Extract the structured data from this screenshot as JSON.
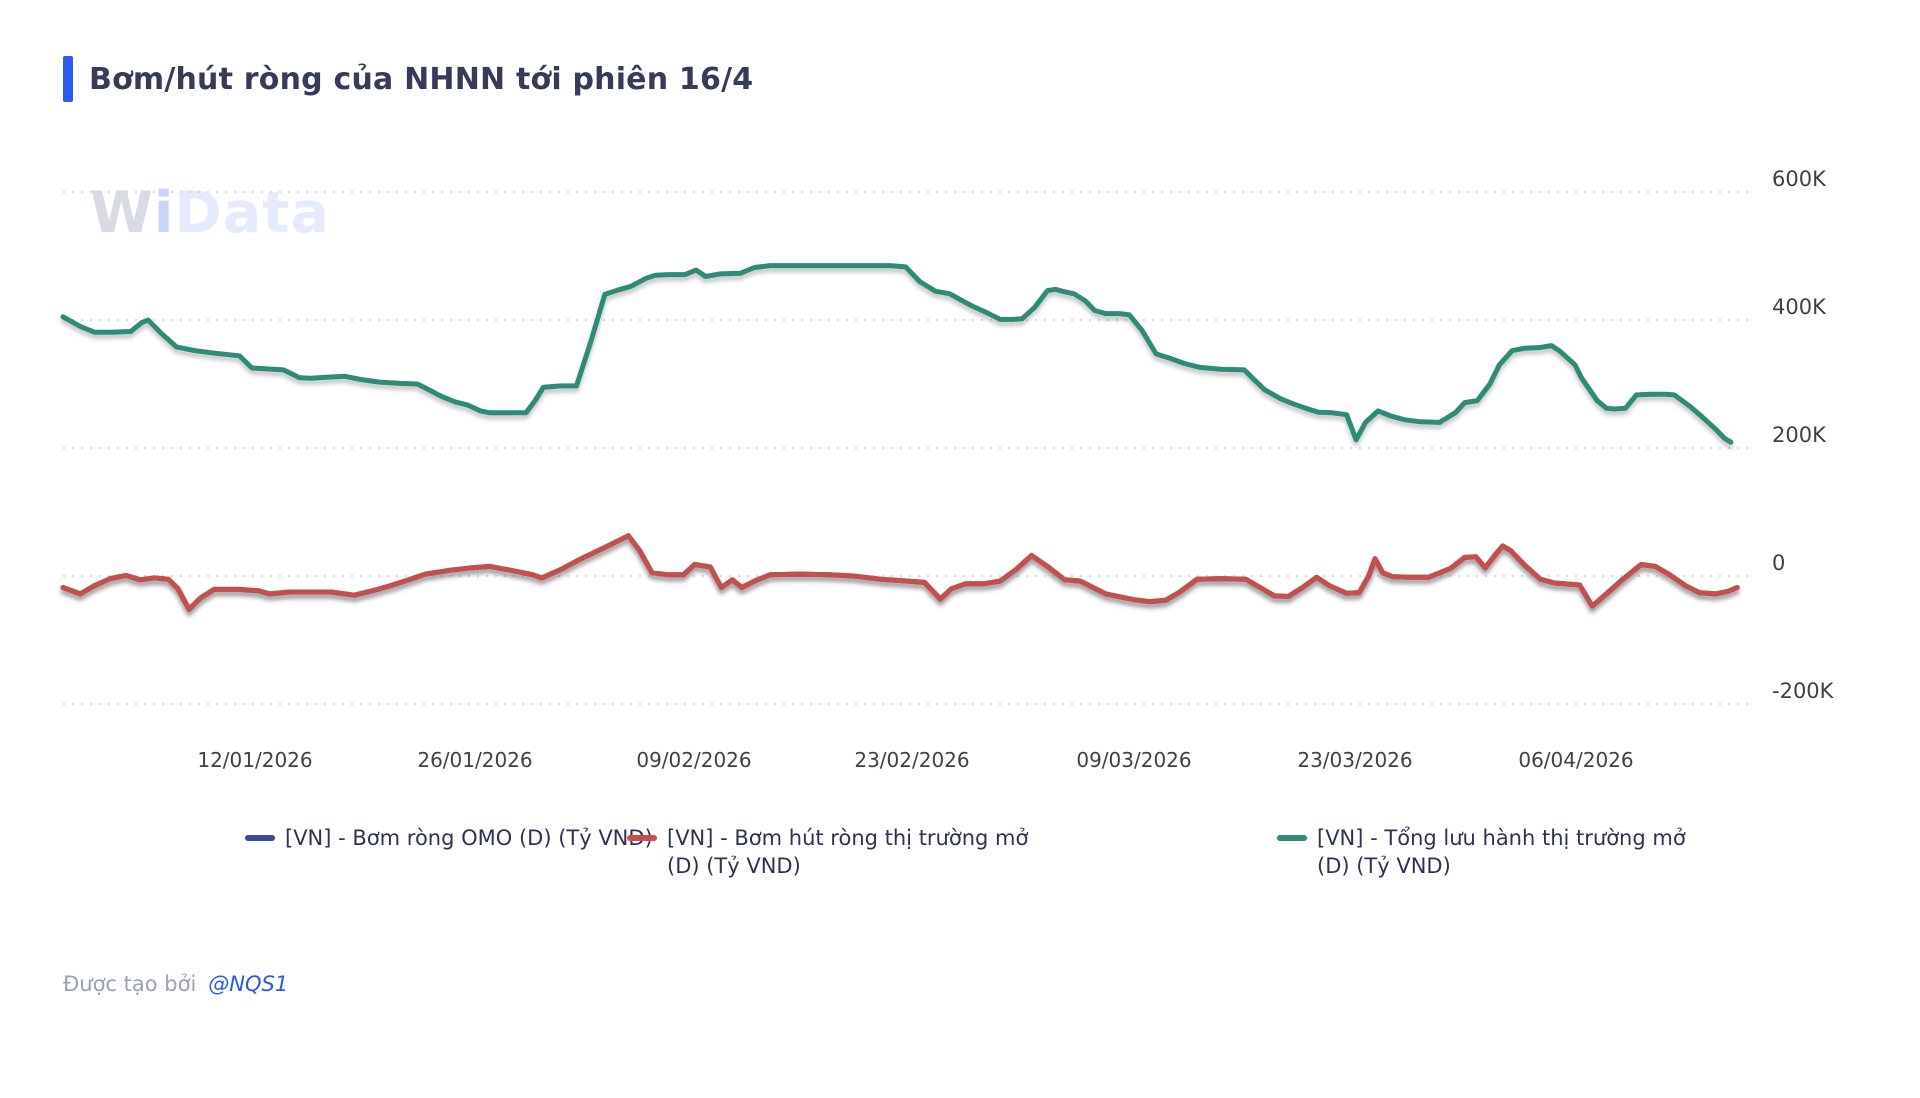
{
  "title": {
    "text": "Bơm/hút ròng của NHNN tới phiên 16/4",
    "accent_color": "#2a5cf0"
  },
  "watermark": {
    "part1": "W",
    "part2": "i",
    "part3": "Data"
  },
  "y_axis": {
    "labels": [
      "600K",
      "400K",
      "200K",
      "0",
      "-200K"
    ]
  },
  "x_axis": {
    "labels": [
      "12/01/2026",
      "26/01/2026",
      "09/02/2026",
      "23/02/2026",
      "09/03/2026",
      "23/03/2026",
      "06/04/2026"
    ]
  },
  "legend": {
    "items": [
      {
        "color": "#3e4a9a",
        "lines": [
          "[VN] - Bơm ròng OMO (D) (Tỷ VND)"
        ]
      },
      {
        "color": "#c5504d",
        "lines": [
          "[VN] - Bơm hút ròng thị trường mở",
          "(D) (Tỷ VND)"
        ]
      },
      {
        "color": "#2e8b76",
        "lines": [
          "[VN] - Tổng lưu hành thị trường mở",
          "(D) (Tỷ VND)"
        ]
      }
    ]
  },
  "footer": {
    "created_by": "Được tạo bởi",
    "author": "@NQS1"
  },
  "chart_data": {
    "type": "line",
    "title": "Bơm/hút ròng của NHNN tới phiên 16/4",
    "value_unit": "Tỷ VND",
    "values_scale": "K (nghìn tỷ VND, đọc theo trục phải)",
    "ylim_K": [
      -200,
      600
    ],
    "grid": "horizontal dotted",
    "legend_position": "bottom",
    "x_axis": {
      "tick_labels": [
        "12/01/2026",
        "26/01/2026",
        "09/02/2026",
        "23/02/2026",
        "09/03/2026",
        "23/03/2026",
        "06/04/2026"
      ],
      "tick_t_days": [
        12.2,
        26.2,
        40.2,
        54.2,
        68.2,
        82.2,
        96.2
      ],
      "t_range": [
        0,
        106.3
      ],
      "t_unit": "days (t=12.2 tương ứng 12/01/2026, dữ liệu kết thúc phiên 16/4/2026)"
    },
    "series": [
      {
        "name": "[VN] - Bơm ròng OMO (D) (Tỷ VND)",
        "color": "#3e4a9a",
        "points_ref": 1,
        "note": "Đường này trùng và bị che hoàn toàn bởi đường đỏ trong ảnh"
      },
      {
        "name": "[VN] - Bơm hút ròng thị trường mở (D) (Tỷ VND)",
        "color": "#c5504d",
        "points": [
          [
            0,
            -18
          ],
          [
            1.1,
            -28
          ],
          [
            2,
            -15
          ],
          [
            3,
            -4
          ],
          [
            4,
            1
          ],
          [
            4.9,
            -6
          ],
          [
            5.8,
            -3
          ],
          [
            6.7,
            -5
          ],
          [
            7.3,
            -20
          ],
          [
            8,
            -52
          ],
          [
            8.7,
            -35
          ],
          [
            9.6,
            -21
          ],
          [
            11.2,
            -21
          ],
          [
            12.4,
            -23
          ],
          [
            13.1,
            -28
          ],
          [
            14.4,
            -25
          ],
          [
            15.7,
            -25
          ],
          [
            17,
            -25
          ],
          [
            18.5,
            -30
          ],
          [
            19.8,
            -22
          ],
          [
            20.8,
            -15
          ],
          [
            21.7,
            -8
          ],
          [
            23,
            3
          ],
          [
            24.6,
            9
          ],
          [
            26,
            13
          ],
          [
            27.1,
            15
          ],
          [
            28.4,
            9
          ],
          [
            29.8,
            2
          ],
          [
            30.4,
            -3
          ],
          [
            31.6,
            10
          ],
          [
            32.9,
            27
          ],
          [
            34.6,
            47
          ],
          [
            35.9,
            63
          ],
          [
            36.6,
            40
          ],
          [
            37.4,
            5
          ],
          [
            38.4,
            2
          ],
          [
            39.4,
            2
          ],
          [
            40.1,
            18
          ],
          [
            41.1,
            14
          ],
          [
            41.8,
            -18
          ],
          [
            42.5,
            -6
          ],
          [
            43.1,
            -18
          ],
          [
            43.9,
            -8
          ],
          [
            44.9,
            2
          ],
          [
            46.8,
            3
          ],
          [
            48.7,
            2
          ],
          [
            50.2,
            0
          ],
          [
            51.9,
            -5
          ],
          [
            53.1,
            -7
          ],
          [
            54.7,
            -10
          ],
          [
            55.7,
            -36
          ],
          [
            56.4,
            -20
          ],
          [
            57.3,
            -12
          ],
          [
            58.5,
            -12
          ],
          [
            59.5,
            -8
          ],
          [
            60.5,
            10
          ],
          [
            61.5,
            32
          ],
          [
            62.5,
            15
          ],
          [
            63.6,
            -6
          ],
          [
            64.6,
            -8
          ],
          [
            66.2,
            -28
          ],
          [
            68,
            -37
          ],
          [
            69,
            -40
          ],
          [
            70,
            -38
          ],
          [
            70.9,
            -25
          ],
          [
            72,
            -5
          ],
          [
            73.5,
            -4
          ],
          [
            75.1,
            -5
          ],
          [
            76,
            -18
          ],
          [
            76.9,
            -31
          ],
          [
            77.8,
            -32
          ],
          [
            78.7,
            -18
          ],
          [
            79.6,
            -2
          ],
          [
            80.4,
            -15
          ],
          [
            81.5,
            -27
          ],
          [
            82.3,
            -26
          ],
          [
            82.9,
            0
          ],
          [
            83.3,
            27
          ],
          [
            83.8,
            5
          ],
          [
            84.4,
            -1
          ],
          [
            85.5,
            -2
          ],
          [
            86.7,
            -2
          ],
          [
            88.1,
            12
          ],
          [
            89,
            29
          ],
          [
            89.7,
            30
          ],
          [
            90.3,
            13
          ],
          [
            91,
            35
          ],
          [
            91.4,
            47
          ],
          [
            91.9,
            40
          ],
          [
            92.8,
            17
          ],
          [
            93.8,
            -5
          ],
          [
            94.7,
            -11
          ],
          [
            95.7,
            -13
          ],
          [
            96.3,
            -14
          ],
          [
            97.1,
            -47
          ],
          [
            97.9,
            -30
          ],
          [
            98.9,
            -8
          ],
          [
            100.2,
            18
          ],
          [
            101.1,
            15
          ],
          [
            102,
            2
          ],
          [
            103,
            -15
          ],
          [
            103.9,
            -26
          ],
          [
            104.9,
            -28
          ],
          [
            105.7,
            -24
          ],
          [
            106.3,
            -18
          ]
        ]
      },
      {
        "name": "[VN] - Tổng lưu hành thị trường mở (D) (Tỷ VND)",
        "color": "#2e8b76",
        "points": [
          [
            0,
            405
          ],
          [
            1.1,
            390
          ],
          [
            2,
            381
          ],
          [
            3,
            381
          ],
          [
            4.3,
            382
          ],
          [
            5,
            396
          ],
          [
            5.4,
            400
          ],
          [
            6.2,
            380
          ],
          [
            7.2,
            358
          ],
          [
            8.4,
            352
          ],
          [
            9.7,
            348
          ],
          [
            11.2,
            344
          ],
          [
            12,
            325
          ],
          [
            14,
            322
          ],
          [
            15,
            310
          ],
          [
            15.7,
            309
          ],
          [
            17,
            311
          ],
          [
            17.9,
            312
          ],
          [
            18.9,
            307
          ],
          [
            20.1,
            303
          ],
          [
            21.4,
            301
          ],
          [
            22.5,
            300
          ],
          [
            23.3,
            290
          ],
          [
            24,
            281
          ],
          [
            24.9,
            272
          ],
          [
            25.7,
            267
          ],
          [
            26.5,
            258
          ],
          [
            27.1,
            255
          ],
          [
            28.4,
            255
          ],
          [
            29.4,
            255
          ],
          [
            30,
            275
          ],
          [
            30.5,
            295
          ],
          [
            31.6,
            297
          ],
          [
            32.6,
            297
          ],
          [
            33.5,
            365
          ],
          [
            34.4,
            440
          ],
          [
            35.4,
            448
          ],
          [
            36.1,
            453
          ],
          [
            37,
            465
          ],
          [
            37.6,
            470
          ],
          [
            38.5,
            471
          ],
          [
            39.5,
            471
          ],
          [
            40.2,
            478
          ],
          [
            40.8,
            468
          ],
          [
            41.7,
            472
          ],
          [
            43,
            473
          ],
          [
            43.9,
            482
          ],
          [
            44.9,
            485
          ],
          [
            46.8,
            485
          ],
          [
            48.7,
            485
          ],
          [
            50.6,
            485
          ],
          [
            52.5,
            485
          ],
          [
            53.5,
            483
          ],
          [
            54.4,
            460
          ],
          [
            55.4,
            445
          ],
          [
            56.3,
            441
          ],
          [
            57.7,
            422
          ],
          [
            58.6,
            412
          ],
          [
            59.5,
            401
          ],
          [
            60.3,
            401
          ],
          [
            60.9,
            402
          ],
          [
            61.7,
            420
          ],
          [
            62.5,
            446
          ],
          [
            63,
            448
          ],
          [
            63.6,
            444
          ],
          [
            64.2,
            441
          ],
          [
            64.9,
            430
          ],
          [
            65.5,
            415
          ],
          [
            66.2,
            410
          ],
          [
            67.1,
            410
          ],
          [
            67.7,
            408
          ],
          [
            68.5,
            384
          ],
          [
            69.4,
            347
          ],
          [
            70.3,
            340
          ],
          [
            71.2,
            332
          ],
          [
            72.2,
            326
          ],
          [
            73.5,
            323
          ],
          [
            75,
            322
          ],
          [
            75.7,
            305
          ],
          [
            76.3,
            291
          ],
          [
            77.3,
            277
          ],
          [
            78,
            270
          ],
          [
            78.9,
            262
          ],
          [
            79.7,
            256
          ],
          [
            80.6,
            255
          ],
          [
            81.5,
            252
          ],
          [
            82.1,
            213
          ],
          [
            82.7,
            240
          ],
          [
            83.5,
            258
          ],
          [
            84.3,
            250
          ],
          [
            85.2,
            244
          ],
          [
            86.2,
            241
          ],
          [
            87.4,
            240
          ],
          [
            88.4,
            255
          ],
          [
            89,
            271
          ],
          [
            89.8,
            274
          ],
          [
            90.6,
            300
          ],
          [
            91.2,
            330
          ],
          [
            92,
            352
          ],
          [
            92.8,
            356
          ],
          [
            93.8,
            357
          ],
          [
            94.5,
            360
          ],
          [
            95,
            352
          ],
          [
            96,
            330
          ],
          [
            96.4,
            310
          ],
          [
            97.4,
            274
          ],
          [
            98,
            262
          ],
          [
            98.5,
            261
          ],
          [
            99.2,
            262
          ],
          [
            99.9,
            283
          ],
          [
            100.8,
            284
          ],
          [
            101.7,
            284
          ],
          [
            102.3,
            283
          ],
          [
            103.3,
            265
          ],
          [
            104.1,
            248
          ],
          [
            104.9,
            230
          ],
          [
            105.5,
            215
          ],
          [
            105.9,
            209
          ]
        ]
      }
    ]
  }
}
